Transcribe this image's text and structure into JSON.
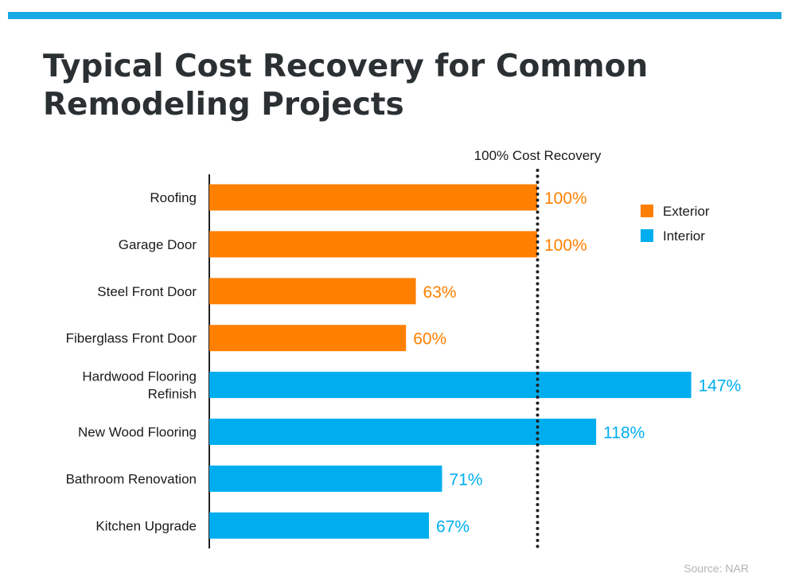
{
  "title_lines": [
    "Typical Cost Recovery for Common",
    "Remodeling Projects"
  ],
  "source": "Source: NAR",
  "colors": {
    "accent_bar": "#17a9e1",
    "exterior": "#ff8000",
    "interior": "#00aeef",
    "axis": "#1f1f1f",
    "title": "#2b3033"
  },
  "chart_data": {
    "type": "bar",
    "orientation": "horizontal",
    "title": "Typical Cost Recovery for Common Remodeling Projects",
    "categories": [
      [
        "Roofing"
      ],
      [
        "Garage Door"
      ],
      [
        "Steel Front Door"
      ],
      [
        "Fiberglass Front Door"
      ],
      [
        "Hardwood Flooring",
        "Refinish"
      ],
      [
        "New Wood Flooring"
      ],
      [
        "Bathroom Renovation"
      ],
      [
        "Kitchen Upgrade"
      ]
    ],
    "values": [
      100,
      100,
      63,
      60,
      147,
      118,
      71,
      67
    ],
    "value_labels": [
      "100%",
      "100%",
      "63%",
      "60%",
      "147%",
      "118%",
      "71%",
      "67%"
    ],
    "groups": [
      "Exterior",
      "Exterior",
      "Exterior",
      "Exterior",
      "Interior",
      "Interior",
      "Interior",
      "Interior"
    ],
    "legend": {
      "placement": "top-right",
      "entries": [
        {
          "name": "Exterior",
          "color": "#ff8000"
        },
        {
          "name": "Interior",
          "color": "#00aeef"
        }
      ]
    },
    "reference_line": {
      "value": 100,
      "label": "100% Cost Recovery",
      "style": "dotted"
    },
    "xlim": [
      0,
      150
    ],
    "grid": false
  }
}
